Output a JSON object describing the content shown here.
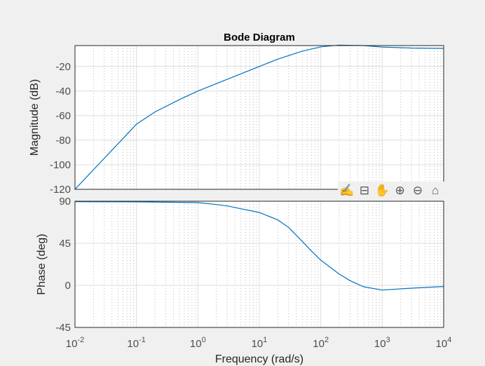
{
  "chart_data": [
    {
      "type": "line",
      "title": "Bode Diagram",
      "ylabel": "Magnitude (dB)",
      "xscale": "log",
      "xlim": [
        0.01,
        10000
      ],
      "ylim": [
        -120,
        -3
      ],
      "yticks": [
        -120,
        -100,
        -80,
        -60,
        -40,
        -20
      ],
      "grid": true,
      "color": "#0072bd",
      "x": [
        0.01,
        0.02,
        0.05,
        0.1,
        0.2,
        0.5,
        1,
        2,
        5,
        10,
        20,
        50,
        100,
        200,
        500,
        1000,
        3000,
        10000
      ],
      "y": [
        -120,
        -104,
        -83,
        -67,
        -57,
        -47,
        -40,
        -34,
        -26,
        -20,
        -14,
        -7.5,
        -4,
        -2.6,
        -3,
        -4.2,
        -5,
        -5.3
      ]
    },
    {
      "type": "line",
      "xlabel": "Frequency  (rad/s)",
      "ylabel": "Phase (deg)",
      "xscale": "log",
      "xlim": [
        0.01,
        10000
      ],
      "ylim": [
        -45,
        90
      ],
      "yticks": [
        -45,
        0,
        45,
        90
      ],
      "xticks": [
        {
          "base": "10",
          "exp": "-2"
        },
        {
          "base": "10",
          "exp": "-1"
        },
        {
          "base": "10",
          "exp": "0"
        },
        {
          "base": "10",
          "exp": "1"
        },
        {
          "base": "10",
          "exp": "2"
        },
        {
          "base": "10",
          "exp": "3"
        },
        {
          "base": "10",
          "exp": "4"
        }
      ],
      "grid": true,
      "color": "#0072bd",
      "x": [
        0.01,
        0.1,
        1,
        2,
        3,
        5,
        10,
        20,
        30,
        50,
        70,
        100,
        200,
        300,
        500,
        1000,
        3000,
        10000
      ],
      "y": [
        89.5,
        89.3,
        88.5,
        86.5,
        85,
        82,
        78,
        70,
        62,
        47,
        37,
        27,
        12,
        5,
        -1.5,
        -5,
        -3,
        -1.2
      ]
    }
  ],
  "toolbar": {
    "icons": [
      "brush-icon",
      "data-tips-icon",
      "pan-hand-icon",
      "zoom-in-icon",
      "zoom-out-icon",
      "home-icon"
    ],
    "glyphs": [
      "✍",
      "⊟",
      "✋",
      "⊕",
      "⊖",
      "⌂"
    ]
  }
}
